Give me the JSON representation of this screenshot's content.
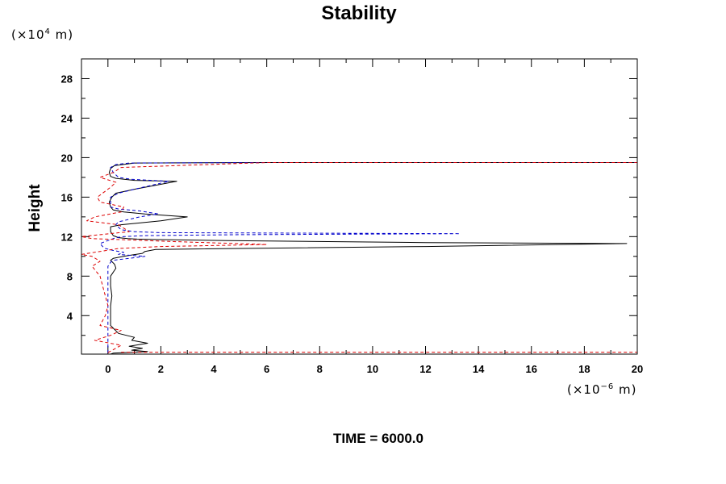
{
  "chart_data": {
    "type": "line",
    "title": "Stability",
    "ylabel": "Height",
    "xlabel": "",
    "y_unit": {
      "prefix": "(×10",
      "exp": "4",
      "suffix": " m)"
    },
    "x_unit": {
      "prefix": "(×10",
      "exp": "−6",
      "suffix": " m)"
    },
    "footer": "TIME = 6000.0",
    "xlim": [
      -1,
      20
    ],
    "ylim": [
      0.1,
      30
    ],
    "x_ticks": [
      "0",
      "2",
      "4",
      "6",
      "8",
      "10",
      "12",
      "14",
      "16",
      "18",
      "20"
    ],
    "y_ticks": [
      "4",
      "8",
      "12",
      "16",
      "20",
      "24",
      "28"
    ],
    "grid": false,
    "colors": {
      "black": "#000000",
      "blue": "#0000cc",
      "red": "#dd0000",
      "frame": "#000000"
    },
    "series": [
      {
        "color": "black",
        "style": "solid",
        "x": [
          0.1,
          0.2,
          1.5,
          0.9,
          1.3,
          0.8,
          1.5,
          0.9,
          1.0,
          0.4,
          0.1,
          0.1,
          0.1,
          0.15,
          0.1,
          0.1,
          0.3,
          0.25,
          0.1,
          0.2,
          0.6,
          0.8,
          1.3,
          1.4,
          1.8,
          12,
          19.6,
          12,
          4.5,
          1.9,
          1.1,
          0.75,
          0.4,
          0.2,
          0.1,
          0.1,
          0.5,
          2.0,
          3.0,
          1.4,
          0.6,
          0.2,
          0.1,
          0.05,
          0.15,
          0.3,
          1.0,
          2.6,
          1.0,
          0.3,
          0.1,
          0.05,
          0.1,
          0.25,
          0.7,
          1.0,
          6,
          20
        ],
        "y": [
          0.1,
          0.2,
          0.35,
          0.5,
          0.7,
          0.9,
          1.2,
          1.5,
          1.8,
          2.2,
          3,
          4,
          5,
          6,
          7,
          8,
          8.8,
          9.2,
          9.6,
          9.8,
          10.0,
          10.1,
          10.3,
          10.5,
          10.7,
          11.0,
          11.3,
          11.4,
          11.6,
          11.7,
          11.75,
          11.8,
          11.9,
          12.1,
          12.5,
          13.0,
          13.2,
          13.6,
          14.0,
          14.3,
          14.5,
          14.7,
          15,
          15.5,
          16,
          16.4,
          16.8,
          17.6,
          17.7,
          17.9,
          18.1,
          18.5,
          18.9,
          19.2,
          19.35,
          19.45,
          19.5,
          19.5
        ]
      },
      {
        "color": "blue",
        "style": "dashed",
        "x": [
          0,
          0,
          0,
          0,
          0.1,
          0.2,
          1.4,
          0.4,
          0.6,
          0.2,
          -0.1,
          -0.2,
          -0.3,
          0,
          0.2,
          0.3,
          0.6,
          1.4,
          5,
          13.3,
          2,
          1.0,
          0.5,
          0.3,
          0.4,
          1.2,
          1.9,
          1.2,
          0.4,
          0.1,
          0.1,
          0.4,
          1.0,
          2.3,
          0.9,
          0.4,
          0.2,
          0.1,
          0.3,
          0.8,
          6,
          20
        ],
        "y": [
          0.2,
          1.5,
          4,
          9,
          9.4,
          9.6,
          10.0,
          10.2,
          10.4,
          10.6,
          10.8,
          11.0,
          11.3,
          11.6,
          11.8,
          11.9,
          12.0,
          12.1,
          12.2,
          12.3,
          12.4,
          12.5,
          12.7,
          13.2,
          13.5,
          14.0,
          14.3,
          14.6,
          14.8,
          15,
          16,
          16.4,
          16.8,
          17.6,
          17.8,
          18.0,
          18.5,
          19.0,
          19.3,
          19.45,
          19.5,
          19.5
        ]
      },
      {
        "color": "red",
        "style": "dashed",
        "x": [
          0,
          0.5,
          -0.5,
          0.1,
          0.5,
          -0.3,
          -0.1,
          0,
          -0.3,
          -0.6,
          -0.3,
          -0.6,
          -1,
          -0.3,
          0.4,
          2,
          6,
          2.5,
          -0.6,
          -1,
          0.8,
          0.4,
          -0.8,
          -0.5,
          0.5,
          0.6,
          -0.3,
          -0.4,
          0.1,
          0.3,
          -0.3,
          0.2,
          0.5,
          6,
          20
        ],
        "y": [
          0.25,
          1,
          1.5,
          2,
          2.5,
          3,
          4,
          5,
          8,
          9,
          9.5,
          10,
          10.2,
          10.5,
          10.8,
          11,
          11.2,
          11.5,
          11.8,
          12,
          12.5,
          13.2,
          13.6,
          14,
          14.5,
          15,
          15.5,
          16,
          17,
          17.5,
          18,
          18.5,
          19,
          19.5,
          19.5
        ]
      },
      {
        "color": "red",
        "style": "dashed",
        "x": [
          0.5,
          3,
          8,
          14,
          20
        ],
        "y": [
          0.3,
          0.3,
          0.3,
          0.3,
          0.3
        ]
      }
    ]
  }
}
